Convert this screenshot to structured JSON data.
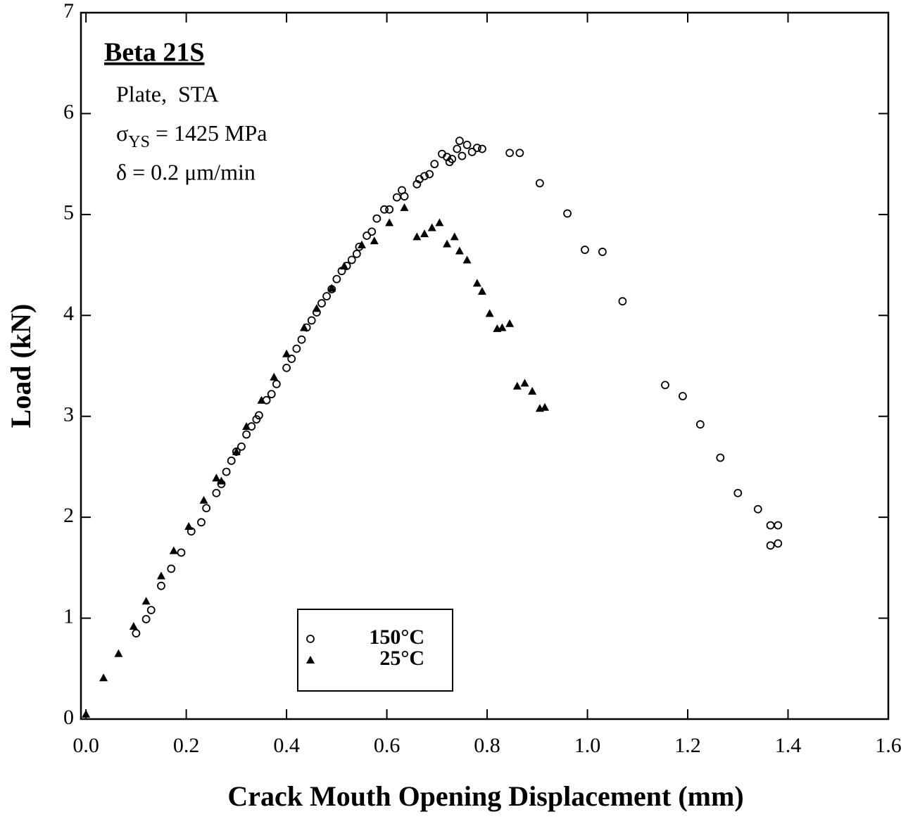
{
  "chart_data": {
    "type": "scatter",
    "xlabel": "Crack Mouth Opening Displacement (mm)",
    "ylabel": "Load (kN)",
    "annotations": {
      "title": "Beta 21S",
      "material": "Plate,  STA",
      "yield": [
        "σ",
        "YS",
        " = 1425 MPa"
      ],
      "rate": "δ = 0.2 μm/min"
    },
    "xlim": [
      -0.01,
      1.6
    ],
    "ylim": [
      0,
      7
    ],
    "xticks": [
      {
        "value": 0,
        "label": "0.0"
      },
      0.2,
      0.4,
      0.6,
      0.8,
      {
        "value": 1,
        "label": "1.0"
      },
      1.2,
      1.4,
      1.6
    ],
    "yticks": [
      0,
      1,
      2,
      3,
      4,
      5,
      6,
      7
    ],
    "grid": false,
    "legend": "bottom-center",
    "series": [
      {
        "name": "150°C",
        "marker": "circle",
        "color": "#000000",
        "x": [
          0.1,
          0.12,
          0.13,
          0.15,
          0.17,
          0.19,
          0.21,
          0.23,
          0.24,
          0.26,
          0.27,
          0.28,
          0.29,
          0.3,
          0.31,
          0.32,
          0.33,
          0.34,
          0.345,
          0.36,
          0.37,
          0.38,
          0.4,
          0.41,
          0.42,
          0.43,
          0.44,
          0.45,
          0.46,
          0.47,
          0.48,
          0.49,
          0.5,
          0.51,
          0.52,
          0.53,
          0.54,
          0.545,
          0.56,
          0.57,
          0.58,
          0.595,
          0.605,
          0.62,
          0.63,
          0.635,
          0.66,
          0.665,
          0.675,
          0.685,
          0.695,
          0.71,
          0.72,
          0.725,
          0.73,
          0.74,
          0.745,
          0.75,
          0.76,
          0.77,
          0.78,
          0.79,
          0.845,
          0.865,
          0.905,
          0.96,
          0.995,
          1.03,
          1.07,
          1.155,
          1.19,
          1.225,
          1.265,
          1.3,
          1.34,
          1.365,
          1.38,
          1.365,
          1.38
        ],
        "values": [
          0.85,
          0.99,
          1.08,
          1.32,
          1.49,
          1.65,
          1.86,
          1.95,
          2.09,
          2.24,
          2.33,
          2.45,
          2.56,
          2.65,
          2.7,
          2.82,
          2.9,
          2.97,
          3.01,
          3.16,
          3.22,
          3.32,
          3.48,
          3.57,
          3.67,
          3.76,
          3.88,
          3.95,
          4.03,
          4.12,
          4.19,
          4.26,
          4.36,
          4.44,
          4.49,
          4.55,
          4.61,
          4.68,
          4.79,
          4.83,
          4.96,
          5.05,
          5.05,
          5.17,
          5.24,
          5.18,
          5.3,
          5.35,
          5.38,
          5.4,
          5.5,
          5.6,
          5.57,
          5.52,
          5.55,
          5.65,
          5.73,
          5.58,
          5.69,
          5.62,
          5.66,
          5.65,
          5.61,
          5.61,
          5.31,
          5.01,
          4.65,
          4.63,
          4.14,
          3.31,
          3.2,
          2.92,
          2.59,
          2.24,
          2.08,
          1.92,
          1.92,
          1.72,
          1.74
        ]
      },
      {
        "name": "25°C",
        "marker": "triangle",
        "color": "#000000",
        "x": [
          0.0,
          0.035,
          0.065,
          0.095,
          0.12,
          0.15,
          0.175,
          0.205,
          0.235,
          0.26,
          0.27,
          0.3,
          0.32,
          0.35,
          0.375,
          0.4,
          0.435,
          0.46,
          0.49,
          0.515,
          0.55,
          0.575,
          0.605,
          0.635,
          0.66,
          0.675,
          0.69,
          0.705,
          0.72,
          0.735,
          0.745,
          0.76,
          0.78,
          0.79,
          0.805,
          0.82,
          0.83,
          0.845,
          0.86,
          0.875,
          0.89,
          0.905,
          0.915
        ],
        "values": [
          0.05,
          0.41,
          0.65,
          0.92,
          1.17,
          1.42,
          1.67,
          1.91,
          2.17,
          2.39,
          2.36,
          2.65,
          2.9,
          3.16,
          3.39,
          3.62,
          3.88,
          4.07,
          4.27,
          4.49,
          4.7,
          4.74,
          4.92,
          5.07,
          4.78,
          4.81,
          4.87,
          4.92,
          4.71,
          4.78,
          4.64,
          4.55,
          4.32,
          4.24,
          4.02,
          3.87,
          3.88,
          3.92,
          3.3,
          3.33,
          3.25,
          3.08,
          3.09
        ]
      }
    ]
  }
}
